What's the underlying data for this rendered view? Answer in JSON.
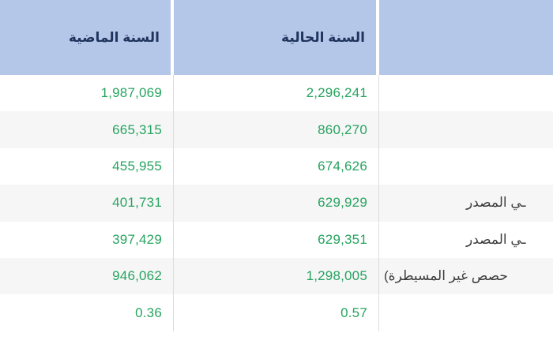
{
  "table": {
    "header": {
      "col_last_year": "السنة الماضية",
      "col_current_year": "السنة الحالية",
      "col_item": ""
    },
    "rows": [
      {
        "last_year": "1,987,069",
        "current_year": "2,296,241",
        "label_visible": ""
      },
      {
        "last_year": "665,315",
        "current_year": "860,270",
        "label_visible": ""
      },
      {
        "last_year": "455,955",
        "current_year": "674,626",
        "label_visible": ""
      },
      {
        "last_year": "401,731",
        "current_year": "629,929",
        "label_visible": "ـي المصدر"
      },
      {
        "last_year": "397,429",
        "current_year": "629,351",
        "label_visible": "ـي المصدر"
      },
      {
        "last_year": "946,062",
        "current_year": "1,298,005",
        "label_visible": "حصص غير المسيطرة)"
      },
      {
        "last_year": "0.36",
        "current_year": "0.57",
        "label_visible": ""
      }
    ],
    "colors": {
      "header_bg": "#b5c7e9",
      "header_text": "#20355d",
      "value_text": "#27a35f",
      "label_text": "#3c3c3c",
      "row_alt_bg": "#f6f6f7",
      "column_border": "#dcdcdc"
    }
  }
}
